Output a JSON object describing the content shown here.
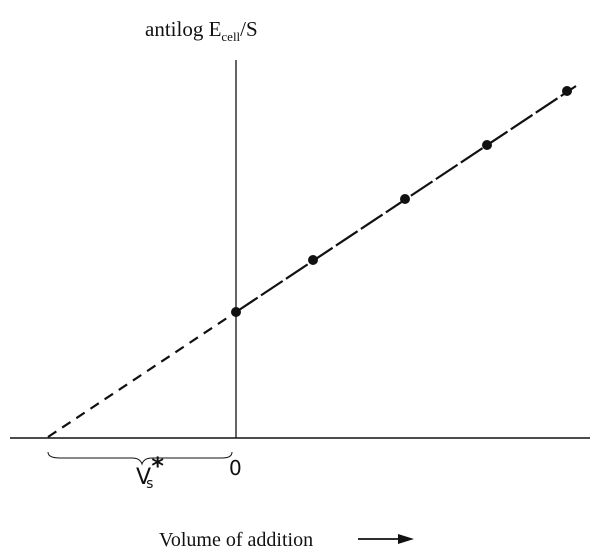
{
  "y_axis_label": {
    "main": "antilog E",
    "subscript": "cell",
    "rest": "/S"
  },
  "origin_label": "0",
  "intercept_label": {
    "main": "V",
    "subscript": "s",
    "superscript": "*"
  },
  "x_axis_label": "Volume of addition"
}
